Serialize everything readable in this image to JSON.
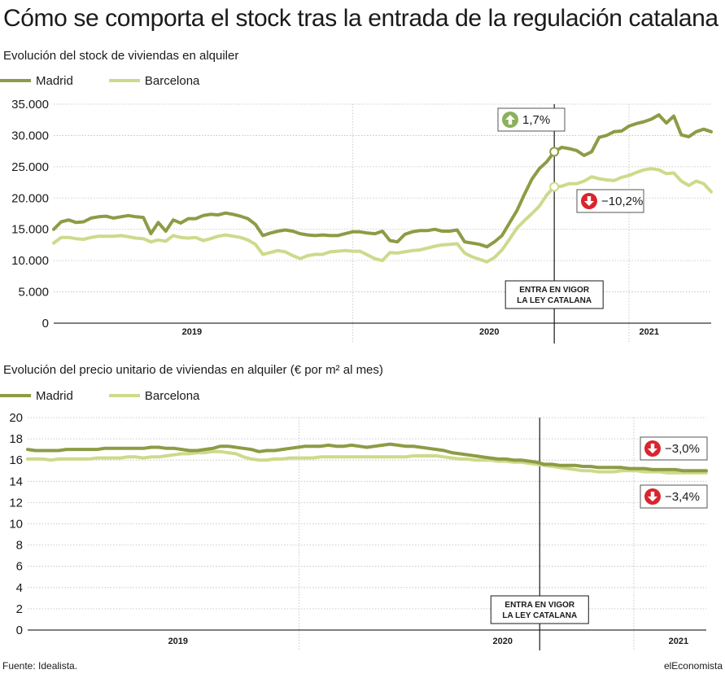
{
  "title": "Cómo se comporta el stock tras la entrada de la regulación catalana",
  "colors": {
    "madrid": "#8c9c45",
    "barcelona": "#cfd98b",
    "up": "#8db05c",
    "down": "#d7262e",
    "grid": "#bdbdbd"
  },
  "event_label": [
    "ENTRA EN VIGOR",
    "LA LEY CATALANA"
  ],
  "source": "Fuente: Idealista.",
  "brand": "elEconomista",
  "chart_data": [
    {
      "type": "line",
      "title": "Evolución del stock de viviendas en alquiler",
      "ylim": [
        0,
        35000
      ],
      "yticks": [
        0,
        5000,
        10000,
        15000,
        20000,
        25000,
        30000,
        35000
      ],
      "ytick_labels": [
        "0",
        "5.000",
        "10.000",
        "15.000",
        "20.000",
        "25.000",
        "30.000",
        "35.000"
      ],
      "xlim": [
        0,
        88
      ],
      "year_labels": [
        "2019",
        "2020",
        "2021"
      ],
      "year_positions": [
        18.5,
        58.3,
        79.7
      ],
      "year_dividers": [
        40.0,
        77.0
      ],
      "event_x": 67.0,
      "series": [
        {
          "name": "Madrid",
          "values": [
            15000,
            16200,
            16500,
            16100,
            16200,
            16800,
            17000,
            17100,
            16800,
            17000,
            17200,
            17000,
            16900,
            14300,
            16100,
            14700,
            16500,
            16000,
            16700,
            16700,
            17200,
            17400,
            17300,
            17600,
            17400,
            17100,
            16700,
            15800,
            14000,
            14400,
            14700,
            14900,
            14700,
            14300,
            14100,
            14000,
            14100,
            14000,
            14000,
            14300,
            14600,
            14600,
            14400,
            14300,
            14700,
            13200,
            13000,
            14200,
            14600,
            14800,
            14800,
            15000,
            14700,
            14700,
            14900,
            13000,
            12800,
            12600,
            12200,
            13000,
            14000,
            16000,
            18000,
            20600,
            23000,
            24700,
            25800,
            27400,
            28100,
            27900,
            27600,
            26800,
            27400,
            29700,
            30000,
            30600,
            30700,
            31500,
            31900,
            32200,
            32600,
            33300,
            32000,
            33100,
            30100,
            29800,
            30600,
            31000,
            30600
          ]
        },
        {
          "name": "Barcelona",
          "values": [
            12800,
            13700,
            13700,
            13500,
            13400,
            13700,
            13900,
            13900,
            13900,
            14000,
            13800,
            13600,
            13500,
            13000,
            13300,
            13100,
            14000,
            13700,
            13600,
            13700,
            13200,
            13500,
            13900,
            14100,
            13900,
            13700,
            13300,
            12600,
            11000,
            11300,
            11600,
            11400,
            10800,
            10300,
            10800,
            11000,
            11000,
            11400,
            11500,
            11600,
            11500,
            11500,
            10900,
            10300,
            10000,
            11300,
            11200,
            11400,
            11600,
            11700,
            12000,
            12300,
            12500,
            12600,
            12700,
            11200,
            10600,
            10200,
            9800,
            10500,
            11700,
            13400,
            15200,
            16400,
            17500,
            18700,
            20500,
            21800,
            21900,
            22300,
            22300,
            22700,
            23400,
            23100,
            22900,
            22800,
            23300,
            23600,
            24100,
            24500,
            24700,
            24500,
            23900,
            24000,
            22700,
            22000,
            22700,
            22300,
            21000
          ]
        }
      ],
      "annotations": [
        {
          "series": "Madrid",
          "direction": "up",
          "text": "1,7%"
        },
        {
          "series": "Barcelona",
          "direction": "down",
          "text": "−10,2%"
        }
      ]
    },
    {
      "type": "line",
      "title": "Evolución del precio unitario de viviendas en alquiler (€ por m² al mes)",
      "ylim": [
        0,
        20
      ],
      "yticks": [
        0,
        2,
        4,
        6,
        8,
        10,
        12,
        14,
        16,
        18,
        20
      ],
      "ytick_labels": [
        "0",
        "2",
        "4",
        "6",
        "8",
        "10",
        "12",
        "14",
        "16",
        "18",
        "20"
      ],
      "xlim": [
        0,
        88
      ],
      "year_labels": [
        "2019",
        "2020",
        "2021"
      ],
      "year_positions": [
        19.5,
        61.6,
        84.4
      ],
      "year_dividers": [
        35.2,
        78.6
      ],
      "event_x": 66.4,
      "series": [
        {
          "name": "Madrid",
          "values": [
            17.0,
            16.9,
            16.9,
            16.9,
            16.9,
            17.0,
            17.0,
            17.0,
            17.0,
            17.0,
            17.1,
            17.1,
            17.1,
            17.1,
            17.1,
            17.1,
            17.2,
            17.2,
            17.1,
            17.1,
            17.0,
            16.9,
            16.9,
            17.0,
            17.1,
            17.3,
            17.3,
            17.2,
            17.1,
            17.0,
            16.8,
            16.9,
            16.9,
            17.0,
            17.1,
            17.2,
            17.3,
            17.3,
            17.3,
            17.4,
            17.3,
            17.3,
            17.4,
            17.3,
            17.2,
            17.3,
            17.4,
            17.5,
            17.4,
            17.3,
            17.3,
            17.2,
            17.1,
            17.0,
            16.9,
            16.7,
            16.6,
            16.5,
            16.4,
            16.3,
            16.2,
            16.1,
            16.1,
            16.0,
            16.0,
            15.9,
            15.8,
            15.6,
            15.6,
            15.5,
            15.5,
            15.5,
            15.4,
            15.4,
            15.3,
            15.3,
            15.3,
            15.3,
            15.2,
            15.2,
            15.2,
            15.1,
            15.1,
            15.1,
            15.1,
            15.0,
            15.0,
            15.0,
            15.0
          ]
        },
        {
          "name": "Barcelona",
          "values": [
            16.1,
            16.1,
            16.1,
            16.0,
            16.1,
            16.1,
            16.1,
            16.1,
            16.1,
            16.2,
            16.2,
            16.2,
            16.2,
            16.3,
            16.3,
            16.2,
            16.3,
            16.3,
            16.4,
            16.5,
            16.6,
            16.6,
            16.7,
            16.7,
            16.8,
            16.8,
            16.7,
            16.6,
            16.3,
            16.1,
            16.0,
            16.0,
            16.1,
            16.1,
            16.2,
            16.2,
            16.2,
            16.2,
            16.3,
            16.3,
            16.3,
            16.3,
            16.3,
            16.3,
            16.3,
            16.3,
            16.3,
            16.3,
            16.3,
            16.3,
            16.4,
            16.4,
            16.4,
            16.4,
            16.3,
            16.2,
            16.1,
            16.1,
            16.0,
            16.0,
            16.0,
            15.9,
            15.9,
            15.8,
            15.8,
            15.7,
            15.6,
            15.5,
            15.4,
            15.3,
            15.2,
            15.1,
            15.0,
            15.0,
            14.9,
            14.9,
            14.9,
            15.0,
            15.0,
            15.0,
            14.9,
            14.9,
            14.9,
            14.8,
            14.8,
            14.8,
            14.8,
            14.8,
            14.8
          ]
        }
      ],
      "annotations": [
        {
          "series": "Madrid",
          "direction": "down",
          "text": "−3,0%"
        },
        {
          "series": "Barcelona",
          "direction": "down",
          "text": "−3,4%"
        }
      ]
    }
  ]
}
